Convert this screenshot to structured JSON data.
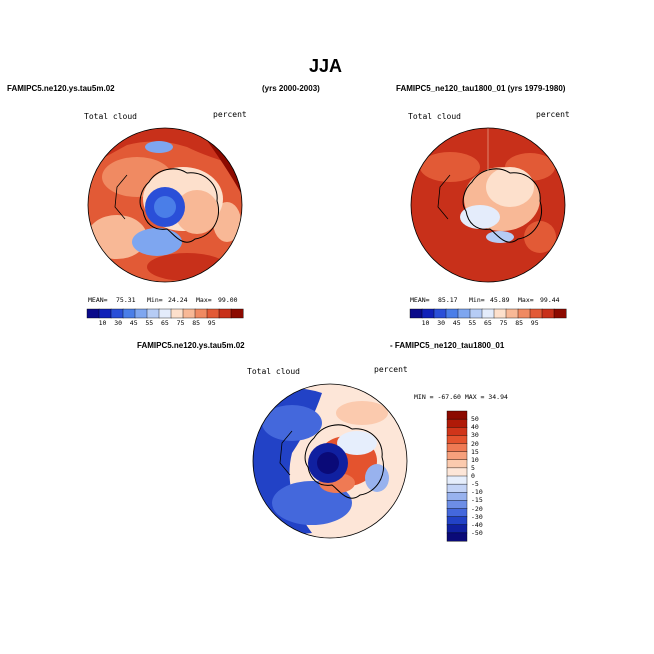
{
  "title": "JJA",
  "panels": [
    {
      "name_left": "FAMIPC5.ne120.ys.tau5m.02",
      "name_right": "(yrs 2000-2003)",
      "field": "Total cloud",
      "units": "percent",
      "stats": {
        "mean_label": "MEAN=",
        "mean": "75.31",
        "min_label": "Min=",
        "min": "24.24",
        "max_label": "Max=",
        "max": "99.00"
      },
      "colorbar_ticks": [
        "10",
        "30",
        "45",
        "55",
        "65",
        "75",
        "85",
        "95"
      ]
    },
    {
      "name_left": "FAMIPC5_ne120_tau1800_01 (yrs 1979-1980)",
      "field": "Total cloud",
      "units": "percent",
      "stats": {
        "mean_label": "MEAN=",
        "mean": "85.17",
        "min_label": "Min=",
        "min": "45.89",
        "max_label": "Max=",
        "max": "99.44"
      },
      "colorbar_ticks": [
        "10",
        "30",
        "45",
        "55",
        "65",
        "75",
        "85",
        "95"
      ]
    },
    {
      "name_left": "FAMIPC5.ne120.ys.tau5m.02",
      "name_right": "- FAMIPC5_ne120_tau1800_01",
      "field": "Total cloud",
      "units": "percent",
      "range": "MIN = -67.60 MAX =  34.94",
      "colorbar_ticks": [
        "50",
        "40",
        "30",
        "20",
        "15",
        "10",
        "5",
        "0",
        "-5",
        "-10",
        "-15",
        "-20",
        "-30",
        "-40",
        "-50"
      ]
    }
  ],
  "colors": {
    "abs_scale": [
      "#0a0a8a",
      "#1020b8",
      "#2a4fd8",
      "#4a7ee8",
      "#7ea6f0",
      "#b6ccf5",
      "#e4ecfb",
      "#fde0cc",
      "#f8b896",
      "#f08a62",
      "#e25a36",
      "#c8301a",
      "#8c0a00"
    ],
    "diff_scale": [
      "#8c0a00",
      "#b01a08",
      "#d0351a",
      "#e4532e",
      "#ef7a54",
      "#f6a07c",
      "#fbcaae",
      "#fde6d8",
      "#e6eefc",
      "#c3d3f6",
      "#98b2ee",
      "#6d8ee6",
      "#4468dc",
      "#2242c6",
      "#1020a0",
      "#0a0a78"
    ]
  }
}
